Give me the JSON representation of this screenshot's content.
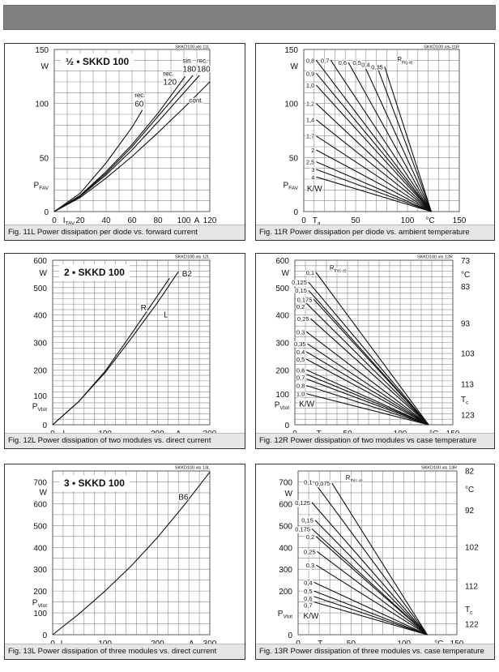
{
  "chart_data": [
    {
      "type": "line",
      "title": "½ • SKKD 100",
      "file_code": "SKKD100.xls 11L",
      "caption": "Fig. 11L Power dissipation per diode vs. forward current",
      "xlim": [
        0,
        120
      ],
      "ylim": [
        0,
        150
      ],
      "xgrid": 10,
      "ygrid": 10,
      "grid": true,
      "xticks": [
        {
          "v": 0,
          "t": "0"
        },
        {
          "v": 8,
          "t": "I",
          "sub": "TAV"
        },
        {
          "v": 20,
          "t": "20"
        },
        {
          "v": 40,
          "t": "40"
        },
        {
          "v": 60,
          "t": "60"
        },
        {
          "v": 80,
          "t": "80"
        },
        {
          "v": 100,
          "t": "100"
        },
        {
          "v": 110,
          "t": "A"
        },
        {
          "v": 120,
          "t": "120"
        }
      ],
      "yticks": [
        {
          "v": 0,
          "t": "0"
        },
        {
          "v": 25,
          "t": "P",
          "sub": "FAV"
        },
        {
          "v": 50,
          "t": "50"
        },
        {
          "v": 100,
          "t": "100"
        },
        {
          "v": 135,
          "t": "W"
        },
        {
          "v": 150,
          "t": "150"
        }
      ],
      "series": [
        {
          "name": "rec. 60",
          "points": [
            [
              0,
              0
            ],
            [
              20,
              17
            ],
            [
              40,
              45
            ],
            [
              60,
              78
            ],
            [
              68,
              94
            ]
          ]
        },
        {
          "name": "rec. 120",
          "points": [
            [
              0,
              0
            ],
            [
              20,
              15
            ],
            [
              40,
              37
            ],
            [
              60,
              62
            ],
            [
              80,
              91
            ],
            [
              101,
              125
            ]
          ]
        },
        {
          "name": "sin. 180",
          "points": [
            [
              0,
              0
            ],
            [
              20,
              14.5
            ],
            [
              40,
              35.5
            ],
            [
              60,
              60
            ],
            [
              80,
              88
            ],
            [
              107,
              126
            ]
          ]
        },
        {
          "name": "rec. 180",
          "points": [
            [
              0,
              0
            ],
            [
              20,
              14
            ],
            [
              40,
              34
            ],
            [
              60,
              57
            ],
            [
              80,
              83
            ],
            [
              112,
              126
            ]
          ]
        },
        {
          "name": "cont.",
          "points": [
            [
              0,
              0
            ],
            [
              20,
              13
            ],
            [
              40,
              31
            ],
            [
              60,
              51
            ],
            [
              80,
              73
            ],
            [
              100,
              96
            ],
            [
              120,
              120
            ]
          ]
        }
      ],
      "annotations": [
        {
          "x": 62,
          "y": 108,
          "t": "rec."
        },
        {
          "x": 62,
          "y": 101,
          "t": "60"
        },
        {
          "x": 84,
          "y": 128,
          "t": "rec."
        },
        {
          "x": 84,
          "y": 121,
          "t": "120"
        },
        {
          "x": 99,
          "y": 140,
          "t": "sin."
        },
        {
          "x": 99,
          "y": 133,
          "t": "180"
        },
        {
          "x": 110,
          "y": 140,
          "t": "rec."
        },
        {
          "x": 110,
          "y": 133,
          "t": "180"
        },
        {
          "x": 104,
          "y": 103,
          "t": "cont."
        }
      ]
    },
    {
      "type": "line",
      "file_code": "SKKD100.xls-11R",
      "caption": "Fig. 11R Power dissipation per diode vs. ambient temperature",
      "xlim": [
        0,
        150
      ],
      "ylim": [
        0,
        150
      ],
      "xgrid": 10,
      "ygrid": 10,
      "grid": true,
      "end_point": [
        123,
        0
      ],
      "xticks": [
        {
          "v": 0,
          "t": "0"
        },
        {
          "v": 10,
          "t": "T",
          "sub": "a"
        },
        {
          "v": 50,
          "t": "50"
        },
        {
          "v": 100,
          "t": "100"
        },
        {
          "v": 122,
          "t": "°C"
        },
        {
          "v": 150,
          "t": "150"
        }
      ],
      "yticks": [
        {
          "v": 0,
          "t": "0"
        },
        {
          "v": 25,
          "t": "P",
          "sub": "FAV"
        },
        {
          "v": 50,
          "t": "50"
        },
        {
          "v": 100,
          "t": "100"
        },
        {
          "v": 135,
          "t": "W"
        },
        {
          "v": 150,
          "t": "150"
        }
      ],
      "rth_lines": [
        {
          "label": "0,35",
          "start": [
            78,
            134
          ]
        },
        {
          "label": "0,4",
          "start": [
            70,
            136
          ]
        },
        {
          "label": "0,5",
          "start": [
            57,
            138
          ]
        },
        {
          "label": "0,6",
          "start": [
            43,
            138
          ]
        },
        {
          "label": "0,7",
          "start": [
            26,
            140
          ]
        },
        {
          "label": "0,8",
          "start": [
            12,
            140
          ]
        },
        {
          "label": "0,9",
          "start": [
            12,
            128
          ]
        },
        {
          "label": "1,0",
          "start": [
            12,
            117
          ]
        },
        {
          "label": "1,2",
          "start": [
            12,
            100
          ]
        },
        {
          "label": "1,4",
          "start": [
            12,
            85
          ]
        },
        {
          "label": "1,7",
          "start": [
            12,
            70
          ]
        },
        {
          "label": "2",
          "start": [
            12,
            57
          ]
        },
        {
          "label": "2,5",
          "start": [
            12,
            46
          ]
        },
        {
          "label": "3",
          "start": [
            12,
            39
          ]
        },
        {
          "label": "4",
          "start": [
            12,
            32
          ]
        }
      ],
      "annotations": [
        {
          "x": 90,
          "y": 141,
          "t": "R",
          "sub": "th(j-a)"
        },
        {
          "x": 3,
          "y": 21,
          "t": "K/W"
        }
      ]
    },
    {
      "type": "line",
      "title": "2 • SKKD 100",
      "file_code": "SKKD100.xls 12L",
      "caption": "Fig. 12L Power dissipation of two modules vs. direct current",
      "xlim": [
        0,
        300
      ],
      "ylim": [
        0,
        600
      ],
      "xgrid": 20,
      "ygrid": 20,
      "grid": true,
      "xticks": [
        {
          "v": 0,
          "t": "0"
        },
        {
          "v": 22,
          "t": "I",
          "sub": "D"
        },
        {
          "v": 100,
          "t": "100"
        },
        {
          "v": 200,
          "t": "200"
        },
        {
          "v": 240,
          "t": "A"
        },
        {
          "v": 300,
          "t": "300"
        }
      ],
      "yticks": [
        {
          "v": 0,
          "t": "0"
        },
        {
          "v": 70,
          "t": "P",
          "sub": "Vtot"
        },
        {
          "v": 100,
          "t": "100"
        },
        {
          "v": 200,
          "t": "200"
        },
        {
          "v": 300,
          "t": "300"
        },
        {
          "v": 400,
          "t": "400"
        },
        {
          "v": 500,
          "t": "500"
        },
        {
          "v": 555,
          "t": "W"
        },
        {
          "v": 600,
          "t": "600"
        }
      ],
      "series": [
        {
          "name": "R",
          "points": [
            [
              0,
              0
            ],
            [
              50,
              85
            ],
            [
              100,
              195
            ],
            [
              150,
              330
            ],
            [
              200,
              470
            ],
            [
              223,
              534
            ]
          ]
        },
        {
          "name": "L",
          "points": [
            [
              0,
              0
            ],
            [
              50,
              85
            ],
            [
              100,
              190
            ],
            [
              150,
              315
            ],
            [
              200,
              445
            ],
            [
              240,
              558
            ]
          ]
        }
      ],
      "annotations": [
        {
          "x": 168,
          "y": 425,
          "t": "R"
        },
        {
          "x": 212,
          "y": 400,
          "t": "L"
        },
        {
          "x": 247,
          "y": 550,
          "t": "B2"
        }
      ]
    },
    {
      "type": "line",
      "file_code": "SKKD100.xls 12R",
      "caption": "Fig. 12R Power dissipation of two modules vs case temperature",
      "xlim": [
        0,
        150
      ],
      "ylim": [
        0,
        600
      ],
      "xgrid": 10,
      "ygrid": 20,
      "grid": true,
      "end_point": [
        127,
        0
      ],
      "xticks": [
        {
          "v": 0,
          "t": "0"
        },
        {
          "v": 22,
          "t": "T",
          "sub": "a"
        },
        {
          "v": 50,
          "t": "50"
        },
        {
          "v": 100,
          "t": "100"
        },
        {
          "v": 132,
          "t": "°C"
        },
        {
          "v": 150,
          "t": "150"
        }
      ],
      "yticks": [
        {
          "v": 0,
          "t": "0"
        },
        {
          "v": 75,
          "t": "P",
          "sub": "Vtot"
        },
        {
          "v": 100,
          "t": "100"
        },
        {
          "v": 200,
          "t": "200"
        },
        {
          "v": 300,
          "t": "300"
        },
        {
          "v": 400,
          "t": "400"
        },
        {
          "v": 500,
          "t": "500"
        },
        {
          "v": 555,
          "t": "W"
        },
        {
          "v": 600,
          "t": "600"
        }
      ],
      "right_ticks": [
        {
          "v": 600,
          "t": "73"
        },
        {
          "v": 550,
          "t": "°C"
        },
        {
          "v": 506,
          "t": "83"
        },
        {
          "v": 371,
          "t": "93"
        },
        {
          "v": 261,
          "t": "103"
        },
        {
          "v": 150,
          "t": "113"
        },
        {
          "v": 95,
          "t": "T",
          "sub": "c"
        },
        {
          "v": 37,
          "t": "123"
        }
      ],
      "rth_lines": [
        {
          "label": "0,1",
          "start": [
            20,
            556
          ]
        },
        {
          "label": "0,125",
          "start": [
            13,
            520
          ]
        },
        {
          "label": "0,15",
          "start": [
            13,
            490
          ]
        },
        {
          "label": "0,175",
          "start": [
            18,
            457
          ]
        },
        {
          "label": "0,2",
          "start": [
            11,
            443
          ]
        },
        {
          "label": "0,25",
          "start": [
            15,
            387
          ]
        },
        {
          "label": "0,3",
          "start": [
            11,
            339
          ]
        },
        {
          "label": "0,35",
          "start": [
            12,
            295
          ]
        },
        {
          "label": "0,4",
          "start": [
            11,
            266
          ]
        },
        {
          "label": "0,5",
          "start": [
            11,
            239
          ]
        },
        {
          "label": "0,6",
          "start": [
            11,
            200
          ]
        },
        {
          "label": "0,7",
          "start": [
            11,
            184
          ]
        },
        {
          "label": "0,8",
          "start": [
            11,
            167
          ]
        },
        {
          "label": "1,0",
          "start": [
            11,
            143
          ]
        },
        {
          "label": "",
          "start": [
            11,
            113
          ]
        }
      ],
      "annotations": [
        {
          "x": 33,
          "y": 574,
          "t": "R",
          "sub": "th(c-a)"
        },
        {
          "x": 4,
          "y": 76,
          "t": "K/W"
        }
      ]
    },
    {
      "type": "line",
      "title": "3 • SKKD 100",
      "file_code": "SKKD100.xls 13L",
      "caption": "Fig. 13L Power dissipation of three modules vs. direct current",
      "xlim": [
        0,
        300
      ],
      "ylim": [
        0,
        750
      ],
      "xgrid": 20,
      "ygrid": 50,
      "grid": true,
      "xticks": [
        {
          "v": 0,
          "t": "0"
        },
        {
          "v": 18,
          "t": "I",
          "sub": "D"
        },
        {
          "v": 100,
          "t": "100"
        },
        {
          "v": 200,
          "t": "200"
        },
        {
          "v": 265,
          "t": "A"
        },
        {
          "v": 300,
          "t": "300"
        }
      ],
      "yticks": [
        {
          "v": 0,
          "t": "0"
        },
        {
          "v": 100,
          "t": "100"
        },
        {
          "v": 150,
          "t": "P",
          "sub": "Vtot"
        },
        {
          "v": 200,
          "t": "200"
        },
        {
          "v": 300,
          "t": "300"
        },
        {
          "v": 400,
          "t": "400"
        },
        {
          "v": 500,
          "t": "500"
        },
        {
          "v": 600,
          "t": "600"
        },
        {
          "v": 655,
          "t": "W"
        },
        {
          "v": 700,
          "t": "700"
        }
      ],
      "series": [
        {
          "name": "B6",
          "points": [
            [
              0,
              0
            ],
            [
              50,
              95
            ],
            [
              100,
              200
            ],
            [
              150,
              315
            ],
            [
              200,
              445
            ],
            [
              250,
              590
            ],
            [
              300,
              745
            ]
          ]
        }
      ],
      "annotations": [
        {
          "x": 240,
          "y": 630,
          "t": "B6"
        }
      ]
    },
    {
      "type": "line",
      "file_code": "SKKD100.xls 13R",
      "caption": "Fig. 13R Power dissipation of three modules vs. case temperature",
      "xlim": [
        0,
        150
      ],
      "ylim": [
        0,
        750
      ],
      "xgrid": 10,
      "ygrid": 50,
      "grid": true,
      "end_point": [
        122,
        0
      ],
      "xticks": [
        {
          "v": 0,
          "t": "0"
        },
        {
          "v": 20,
          "t": "T",
          "sub": "a"
        },
        {
          "v": 50,
          "t": "50"
        },
        {
          "v": 100,
          "t": "100"
        },
        {
          "v": 133,
          "t": "°C"
        },
        {
          "v": 150,
          "t": "150"
        }
      ],
      "yticks": [
        {
          "v": 0,
          "t": "0"
        },
        {
          "v": 100,
          "t": "P",
          "sub": "Vtot"
        },
        {
          "v": 200,
          "t": "200"
        },
        {
          "v": 300,
          "t": "300"
        },
        {
          "v": 400,
          "t": "400"
        },
        {
          "v": 500,
          "t": "500"
        },
        {
          "v": 600,
          "t": "600"
        },
        {
          "v": 650,
          "t": "W"
        },
        {
          "v": 700,
          "t": "700"
        }
      ],
      "right_ticks": [
        {
          "v": 752,
          "t": "82"
        },
        {
          "v": 669,
          "t": "°C"
        },
        {
          "v": 571,
          "t": "92"
        },
        {
          "v": 402,
          "t": "102"
        },
        {
          "v": 225,
          "t": "112"
        },
        {
          "v": 119,
          "t": "T",
          "sub": "c"
        },
        {
          "v": 50,
          "t": "122"
        }
      ],
      "rth_lines": [
        {
          "label": "0,075",
          "start": [
            32,
            694
          ]
        },
        {
          "label": "0,1",
          "start": [
            15,
            700
          ]
        },
        {
          "label": "0,125",
          "start": [
            13,
            606
          ]
        },
        {
          "label": "0,15",
          "start": [
            16,
            525
          ]
        },
        {
          "label": "0,175",
          "start": [
            13,
            485
          ]
        },
        {
          "label": "0,2",
          "start": [
            17,
            450
          ]
        },
        {
          "label": "0,25",
          "start": [
            18,
            381
          ]
        },
        {
          "label": "0,3",
          "start": [
            17,
            319
          ]
        },
        {
          "label": "0,4",
          "start": [
            15,
            240
          ]
        },
        {
          "label": "0,5",
          "start": [
            15,
            200
          ]
        },
        {
          "label": "0,6",
          "start": [
            15,
            175
          ]
        },
        {
          "label": "0,7",
          "start": [
            15,
            150
          ]
        }
      ],
      "annotations": [
        {
          "x": 45,
          "y": 720,
          "t": "R",
          "sub": "th(c-a)"
        },
        {
          "x": 5,
          "y": 85,
          "t": "K/W"
        }
      ]
    }
  ]
}
